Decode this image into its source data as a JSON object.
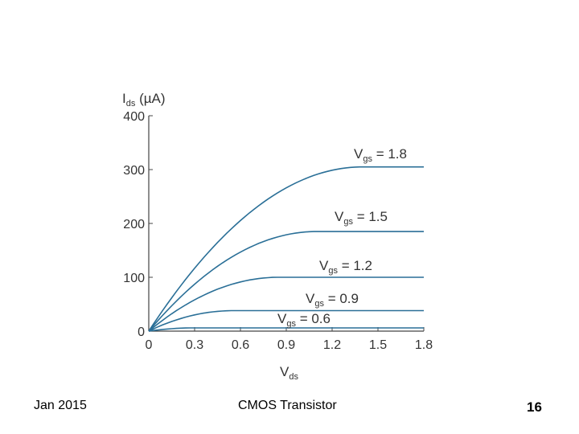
{
  "chart_data": {
    "type": "line",
    "ylabel_main": "I",
    "ylabel_sub": "ds",
    "ylabel_unit": "(µA)",
    "xlabel_main": "V",
    "xlabel_sub": "ds",
    "xlim": [
      0,
      1.8
    ],
    "ylim": [
      0,
      400
    ],
    "x_ticks": [
      "0",
      "0.3",
      "0.6",
      "0.9",
      "1.2",
      "1.5",
      "1.8"
    ],
    "x_tick_values": [
      0,
      0.3,
      0.6,
      0.9,
      1.2,
      1.5,
      1.8
    ],
    "y_ticks": [
      "0",
      "100",
      "200",
      "300",
      "400"
    ],
    "y_tick_values": [
      0,
      100,
      200,
      300,
      400
    ],
    "grid": false,
    "line_color": "#2a6f97",
    "series": [
      {
        "label_main": "V",
        "label_sub": "gs",
        "label_value": " = 0.6",
        "vgs": 0.6,
        "vsat": 0.3,
        "isat": 6
      },
      {
        "label_main": "V",
        "label_sub": "gs",
        "label_value": " = 0.9",
        "vgs": 0.9,
        "vsat": 0.55,
        "isat": 38
      },
      {
        "label_main": "V",
        "label_sub": "gs",
        "label_value": " = 1.2",
        "vgs": 1.2,
        "vsat": 0.85,
        "isat": 100
      },
      {
        "label_main": "V",
        "label_sub": "gs",
        "label_value": " = 1.5",
        "vgs": 1.5,
        "vsat": 1.1,
        "isat": 185
      },
      {
        "label_main": "V",
        "label_sub": "gs",
        "label_value": " = 1.8",
        "vgs": 1.8,
        "vsat": 1.4,
        "isat": 305
      }
    ]
  },
  "footer": {
    "date": "Jan 2015",
    "title": "CMOS Transistor",
    "page": "16"
  }
}
